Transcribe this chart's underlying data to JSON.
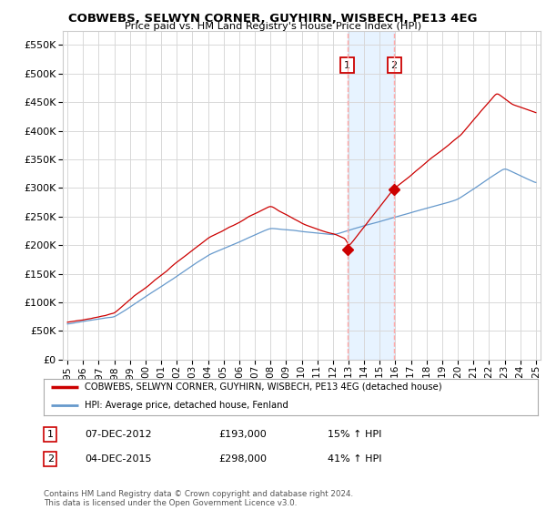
{
  "title": "COBWEBS, SELWYN CORNER, GUYHIRN, WISBECH, PE13 4EG",
  "subtitle": "Price paid vs. HM Land Registry's House Price Index (HPI)",
  "ylim": [
    0,
    575000
  ],
  "yticks": [
    0,
    50000,
    100000,
    150000,
    200000,
    250000,
    300000,
    350000,
    400000,
    450000,
    500000,
    550000
  ],
  "background_color": "#ffffff",
  "plot_bg_color": "#ffffff",
  "grid_color": "#d8d8d8",
  "legend_entry1": "COBWEBS, SELWYN CORNER, GUYHIRN, WISBECH, PE13 4EG (detached house)",
  "legend_entry2": "HPI: Average price, detached house, Fenland",
  "line1_color": "#cc0000",
  "line2_color": "#6699cc",
  "purchase1_date": "07-DEC-2012",
  "purchase1_price": 193000,
  "purchase1_hpi": "15% ↑ HPI",
  "purchase2_date": "04-DEC-2015",
  "purchase2_price": 298000,
  "purchase2_hpi": "41% ↑ HPI",
  "purchase1_label": "1",
  "purchase2_label": "2",
  "purchase1_x": 2012.92,
  "purchase2_x": 2015.92,
  "annotation_box_color": "#cc0000",
  "shade_color": "#ddeeff",
  "vline_color": "#ffaaaa",
  "footer": "Contains HM Land Registry data © Crown copyright and database right 2024.\nThis data is licensed under the Open Government Licence v3.0.",
  "x_tick_years": [
    1995,
    1996,
    1997,
    1998,
    1999,
    2000,
    2001,
    2002,
    2003,
    2004,
    2005,
    2006,
    2007,
    2008,
    2009,
    2010,
    2011,
    2012,
    2013,
    2014,
    2015,
    2016,
    2017,
    2018,
    2019,
    2020,
    2021,
    2022,
    2023,
    2024,
    2025
  ]
}
